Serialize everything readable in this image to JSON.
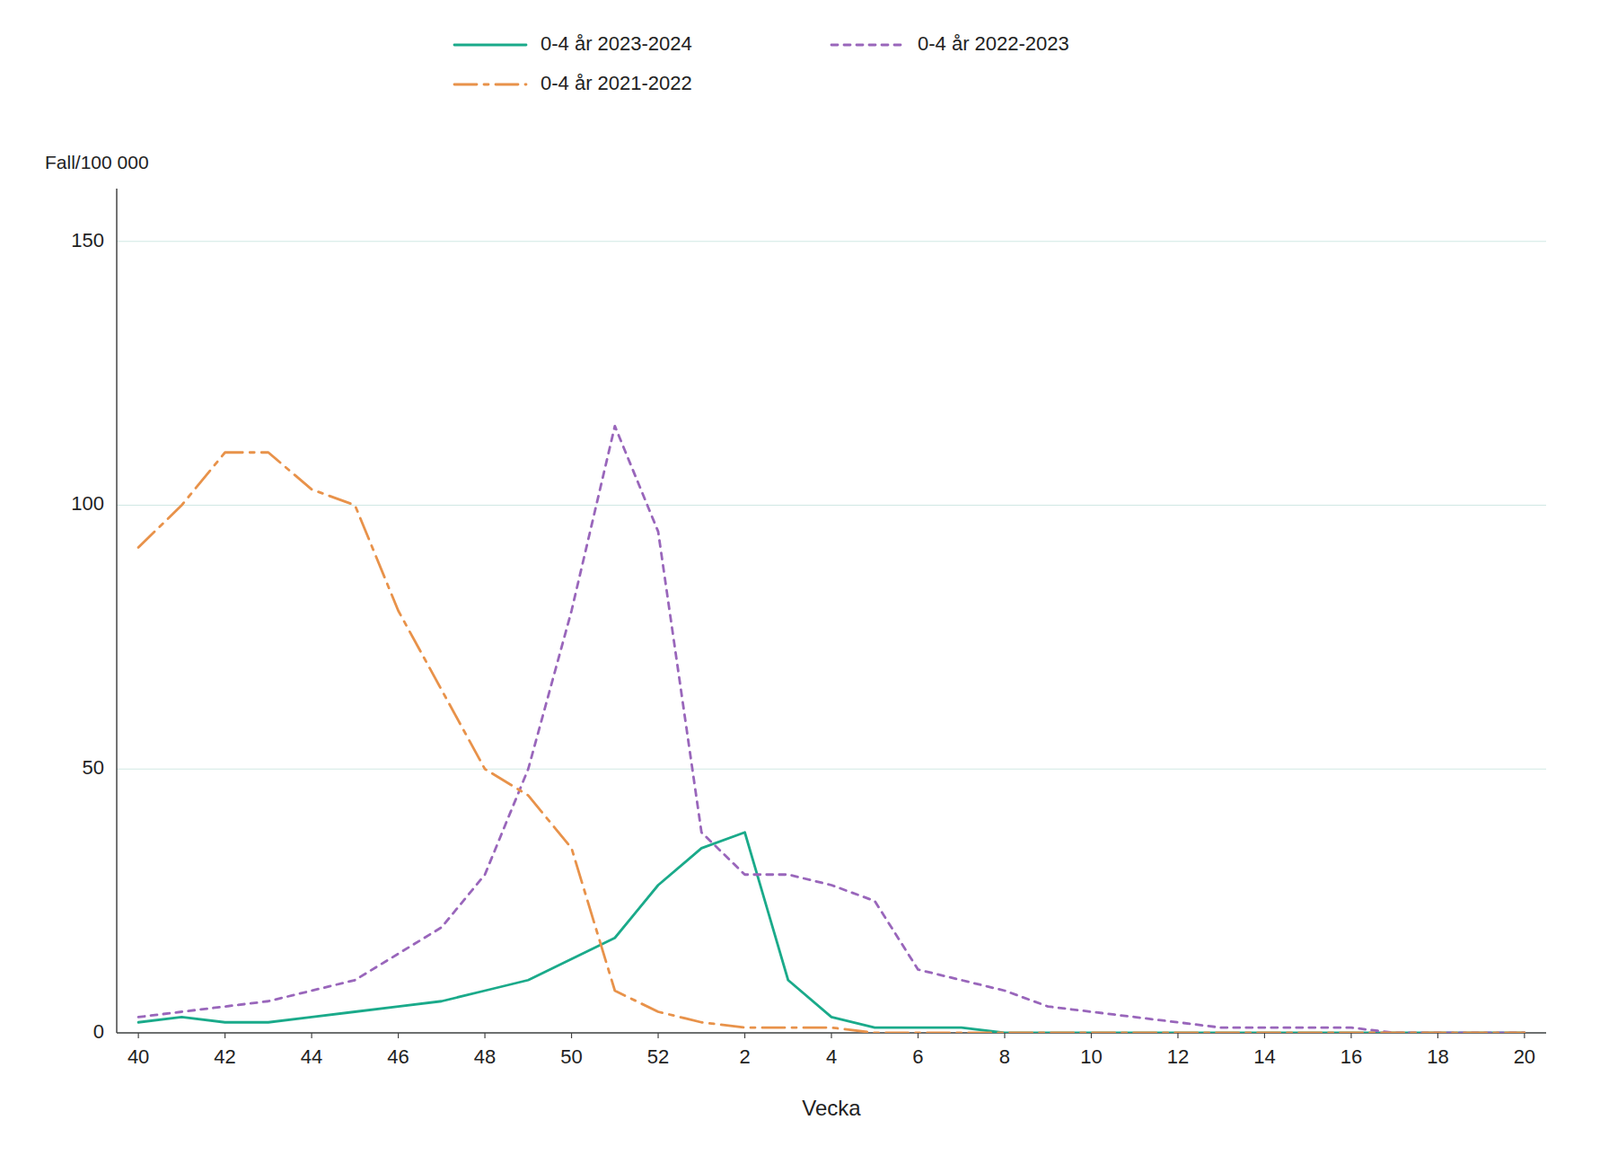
{
  "chart_data": {
    "type": "line",
    "xlabel": "Vecka",
    "ylabel": "Fall/100 000",
    "categories": [
      "40",
      null,
      "42",
      null,
      "44",
      null,
      "46",
      null,
      "48",
      null,
      "50",
      null,
      "52",
      null,
      "2",
      null,
      "4",
      null,
      "6",
      null,
      "8",
      null,
      "10",
      null,
      "12",
      null,
      "14",
      null,
      "16",
      null,
      "18",
      null,
      "20"
    ],
    "ylim": [
      0,
      160
    ],
    "yticks": [
      0,
      50,
      100,
      150
    ],
    "grid": true,
    "legend": "top",
    "series": [
      {
        "name": "0-4 år 2023-2024",
        "color": "#1aaa8a",
        "line_style": "solid",
        "values": [
          2,
          3,
          2,
          2,
          3,
          4,
          5,
          6,
          8,
          10,
          14,
          18,
          28,
          35,
          38,
          10,
          3,
          1,
          1,
          1,
          0,
          0,
          0,
          0,
          0,
          0,
          0,
          0,
          0,
          0,
          0,
          0,
          0
        ]
      },
      {
        "name": "0-4 år 2022-2023",
        "color": "#9966bb",
        "line_style": "dotted",
        "values": [
          3,
          4,
          5,
          6,
          8,
          10,
          15,
          20,
          30,
          50,
          80,
          115,
          95,
          38,
          30,
          30,
          28,
          25,
          12,
          10,
          8,
          5,
          4,
          3,
          2,
          1,
          1,
          1,
          1,
          0,
          0,
          0,
          0
        ]
      },
      {
        "name": "0-4 år 2021-2022",
        "color": "#e8924a",
        "line_style": "dashdot",
        "values": [
          92,
          100,
          110,
          110,
          103,
          100,
          80,
          65,
          50,
          45,
          35,
          8,
          4,
          2,
          1,
          1,
          1,
          0,
          0,
          0,
          0,
          0,
          0,
          0,
          0,
          0,
          0,
          0,
          0,
          0,
          0,
          0,
          0
        ]
      }
    ]
  }
}
